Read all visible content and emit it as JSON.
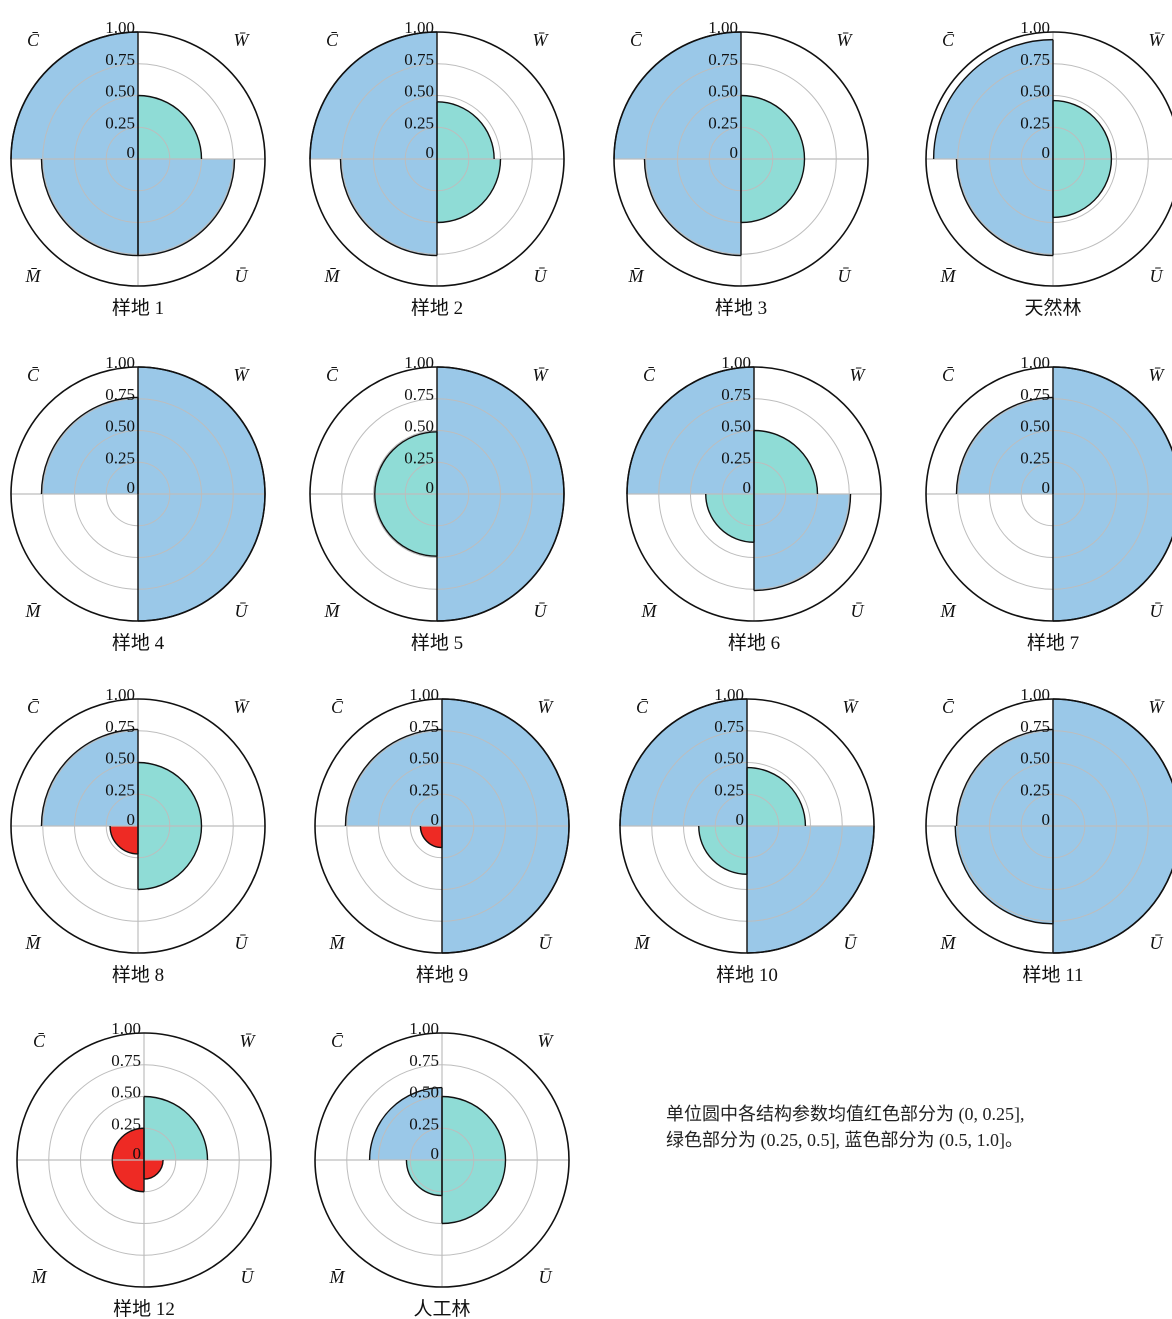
{
  "colors": {
    "red": "#ee2a24",
    "green": "#8fdcd6",
    "blue": "#9ac8e8",
    "grid": "#bdbdbd",
    "axis": "#555555"
  },
  "note": {
    "line1": "单位圆中各结构参数均值红色部分为 (0, 0.25],",
    "line2": "绿色部分为 (0.25, 0.5], 蓝色部分为 (0.5, 1.0]。"
  },
  "chart_data": [
    {
      "type": "polar-quadrant",
      "title": "样地 1",
      "quadrant_labels": {
        "top_left": "C̄",
        "top_right": "W̄",
        "bottom_left": "M̄",
        "bottom_right": "Ū"
      },
      "tick_labels": [
        "1.00",
        "0.75",
        "0.50",
        "0.25",
        "0"
      ],
      "rlim": [
        0,
        1
      ],
      "values": {
        "C": 1.0,
        "W": 0.5,
        "U": 0.76,
        "M": 0.76
      }
    },
    {
      "type": "polar-quadrant",
      "title": "样地 2",
      "quadrant_labels": {
        "top_left": "C̄",
        "top_right": "W̄",
        "bottom_left": "M̄",
        "bottom_right": "Ū"
      },
      "tick_labels": [
        "1.00",
        "0.75",
        "0.50",
        "0.25",
        "0"
      ],
      "rlim": [
        0,
        1
      ],
      "values": {
        "C": 1.0,
        "W": 0.45,
        "U": 0.5,
        "M": 0.76
      }
    },
    {
      "type": "polar-quadrant",
      "title": "样地 3",
      "quadrant_labels": {
        "top_left": "C̄",
        "top_right": "W̄",
        "bottom_left": "M̄",
        "bottom_right": "Ū"
      },
      "tick_labels": [
        "1.00",
        "0.75",
        "0.50",
        "0.25",
        "0"
      ],
      "rlim": [
        0,
        1
      ],
      "values": {
        "C": 1.0,
        "W": 0.5,
        "U": 0.5,
        "M": 0.76
      }
    },
    {
      "type": "polar-quadrant",
      "title": "天然林",
      "quadrant_labels": {
        "top_left": "C̄",
        "top_right": "W̄",
        "bottom_left": "M̄",
        "bottom_right": "Ū"
      },
      "tick_labels": [
        "1.00",
        "0.75",
        "0.50",
        "0.25",
        "0"
      ],
      "rlim": [
        0,
        1
      ],
      "values": {
        "C": 0.94,
        "W": 0.46,
        "U": 0.46,
        "M": 0.76
      }
    },
    {
      "type": "polar-quadrant",
      "title": "样地 4",
      "quadrant_labels": {
        "top_left": "C̄",
        "top_right": "W̄",
        "bottom_left": "M̄",
        "bottom_right": "Ū"
      },
      "tick_labels": [
        "1.00",
        "0.75",
        "0.50",
        "0.25",
        "0"
      ],
      "rlim": [
        0,
        1
      ],
      "values": {
        "C": 0.76,
        "W": 1.0,
        "U": 1.0,
        "M": 0
      }
    },
    {
      "type": "polar-quadrant",
      "title": "样地 5",
      "quadrant_labels": {
        "top_left": "C̄",
        "top_right": "W̄",
        "bottom_left": "M̄",
        "bottom_right": "Ū"
      },
      "tick_labels": [
        "1.00",
        "0.75",
        "0.50",
        "0.25",
        "0"
      ],
      "rlim": [
        0,
        1
      ],
      "values": {
        "C": 0.49,
        "W": 1.0,
        "U": 1.0,
        "M": 0.49
      }
    },
    {
      "type": "polar-quadrant",
      "title": "样地 6",
      "quadrant_labels": {
        "top_left": "C̄",
        "top_right": "W̄",
        "bottom_left": "M̄",
        "bottom_right": "Ū"
      },
      "tick_labels": [
        "1.00",
        "0.75",
        "0.50",
        "0.25",
        "0"
      ],
      "rlim": [
        0,
        1
      ],
      "values": {
        "C": 1.0,
        "W": 0.5,
        "U": 0.76,
        "M": 0.38
      }
    },
    {
      "type": "polar-quadrant",
      "title": "样地 7",
      "quadrant_labels": {
        "top_left": "C̄",
        "top_right": "W̄",
        "bottom_left": "M̄",
        "bottom_right": "Ū"
      },
      "tick_labels": [
        "1.00",
        "0.75",
        "0.50",
        "0.25",
        "0"
      ],
      "rlim": [
        0,
        1
      ],
      "values": {
        "C": 0.76,
        "W": 1.0,
        "U": 1.0,
        "M": 0
      }
    },
    {
      "type": "polar-quadrant",
      "title": "样地 8",
      "quadrant_labels": {
        "top_left": "C̄",
        "top_right": "W̄",
        "bottom_left": "M̄",
        "bottom_right": "Ū"
      },
      "tick_labels": [
        "1.00",
        "0.75",
        "0.50",
        "0.25",
        "0"
      ],
      "rlim": [
        0,
        1
      ],
      "values": {
        "C": 0.76,
        "W": 0.5,
        "U": 0.5,
        "M": 0.22
      }
    },
    {
      "type": "polar-quadrant",
      "title": "样地 9",
      "quadrant_labels": {
        "top_left": "C̄",
        "top_right": "W̄",
        "bottom_left": "M̄",
        "bottom_right": "Ū"
      },
      "tick_labels": [
        "1.00",
        "0.75",
        "0.50",
        "0.25",
        "0"
      ],
      "rlim": [
        0,
        1
      ],
      "values": {
        "C": 0.76,
        "W": 1.0,
        "U": 1.0,
        "M": 0.17
      }
    },
    {
      "type": "polar-quadrant",
      "title": "样地 10",
      "quadrant_labels": {
        "top_left": "C̄",
        "top_right": "W̄",
        "bottom_left": "M̄",
        "bottom_right": "Ū"
      },
      "tick_labels": [
        "1.00",
        "0.75",
        "0.50",
        "0.25",
        "0"
      ],
      "rlim": [
        0,
        1
      ],
      "values": {
        "C": 1.0,
        "W": 0.46,
        "U": 1.0,
        "M": 0.38
      }
    },
    {
      "type": "polar-quadrant",
      "title": "样地 11",
      "quadrant_labels": {
        "top_left": "C̄",
        "top_right": "W̄",
        "bottom_left": "M̄",
        "bottom_right": "Ū"
      },
      "tick_labels": [
        "1.00",
        "0.75",
        "0.50",
        "0.25",
        "0"
      ],
      "rlim": [
        0,
        1
      ],
      "values": {
        "C": 0.76,
        "W": 1.0,
        "U": 1.0,
        "M": 0.77
      }
    },
    {
      "type": "polar-quadrant",
      "title": "样地 12",
      "quadrant_labels": {
        "top_left": "C̄",
        "top_right": "W̄",
        "bottom_left": "M̄",
        "bottom_right": "Ū"
      },
      "tick_labels": [
        "1.00",
        "0.75",
        "0.50",
        "0.25",
        "0"
      ],
      "rlim": [
        0,
        1
      ],
      "values": {
        "C": 0.25,
        "W": 0.5,
        "U": 0.15,
        "M": 0.25
      }
    },
    {
      "type": "polar-quadrant",
      "title": "人工林",
      "quadrant_labels": {
        "top_left": "C̄",
        "top_right": "W̄",
        "bottom_left": "M̄",
        "bottom_right": "Ū"
      },
      "tick_labels": [
        "1.00",
        "0.75",
        "0.50",
        "0.25",
        "0"
      ],
      "rlim": [
        0,
        1
      ],
      "values": {
        "C": 0.57,
        "W": 0.5,
        "U": 0.5,
        "M": 0.28
      }
    }
  ]
}
